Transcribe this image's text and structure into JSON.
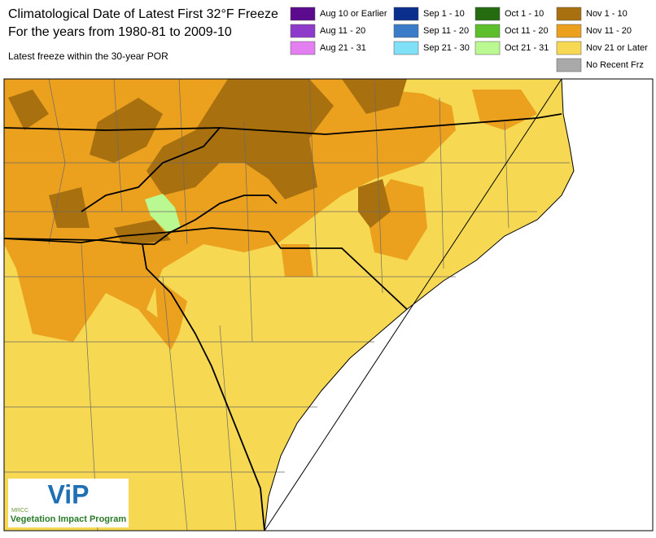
{
  "header": {
    "title_line1": "Climatological Date of Latest First 32°F Freeze",
    "title_line2": "For the years from 1980-81 to 2009-10",
    "subtitle": "Latest freeze within the 30-year POR"
  },
  "legend": {
    "columns": [
      [
        {
          "label": "Aug 10 or Earlier",
          "color": "#5c0a8e"
        },
        {
          "label": "Aug 11 - 20",
          "color": "#8e3bcc"
        },
        {
          "label": "Aug 21 - 31",
          "color": "#e47ff2"
        }
      ],
      [
        {
          "label": "Sep 1 - 10",
          "color": "#0b2f8d"
        },
        {
          "label": "Sep 11 - 20",
          "color": "#3a7cc8"
        },
        {
          "label": "Sep 21 - 30",
          "color": "#80e0f8"
        }
      ],
      [
        {
          "label": "Oct 1 - 10",
          "color": "#256b10"
        },
        {
          "label": "Oct 11 - 20",
          "color": "#5dbf2c"
        },
        {
          "label": "Oct 21 - 31",
          "color": "#baf892"
        }
      ],
      [
        {
          "label": "Nov 1 - 10",
          "color": "#a8700e"
        },
        {
          "label": "Nov 11 - 20",
          "color": "#eba01e"
        },
        {
          "label": "Nov 21 or Later",
          "color": "#f6d852"
        },
        {
          "label": "No Recent Frz",
          "color": "#a9a9a9"
        }
      ]
    ]
  },
  "logo": {
    "mark": "ViP",
    "org": "MRCC",
    "name": "Vegetation Impact Program"
  }
}
